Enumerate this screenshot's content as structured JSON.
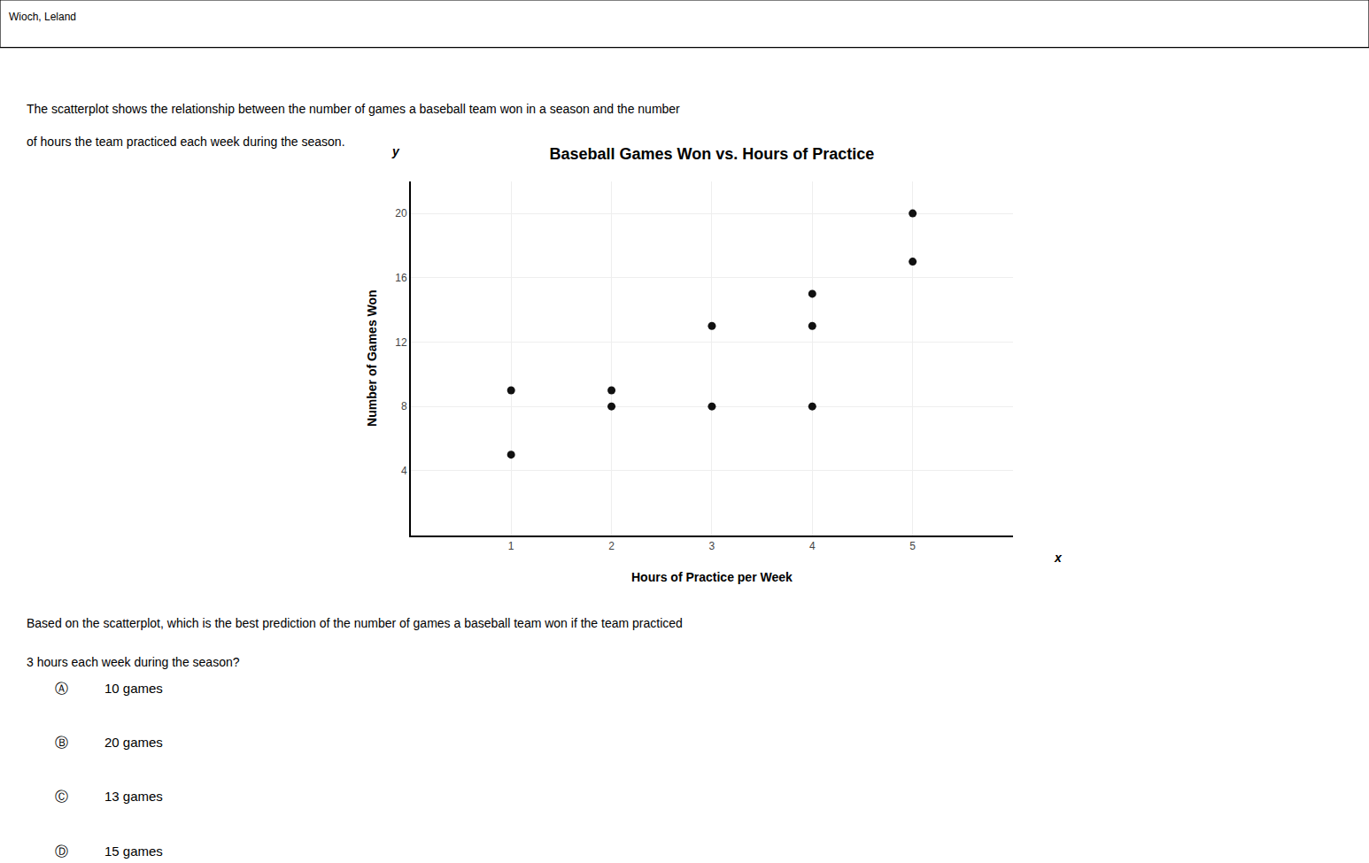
{
  "chart_data": {
    "type": "scatter",
    "title": "Baseball Games Won vs. Hours of Practice",
    "xlabel": "Hours of Practice per Week",
    "ylabel": "Number of Games Won",
    "x": [
      1,
      1,
      2,
      2,
      3,
      3,
      4,
      4,
      4,
      5,
      5
    ],
    "values": [
      9,
      5,
      9,
      8,
      8,
      13,
      8,
      15,
      13,
      17,
      20
    ],
    "color": "#111111",
    "xlim": [
      0,
      6
    ],
    "ylim": [
      0,
      22
    ],
    "xticks": [
      1,
      2,
      3,
      4,
      5
    ],
    "yticks": [
      4,
      8,
      12,
      16,
      20
    ],
    "grid": true,
    "annotations": [
      "Wioch, Leland",
      "The scatterplot shows the relationship between the number of games a baseball team won in a season and the number",
      "of hours the team practiced each week during the season.",
      "y",
      "x",
      "Based on the scatterplot, which is the best prediction of the number of games a baseball team won if the team practiced",
      "3 hours each week during the season?",
      "Ⓐ",
      "10 games",
      "Ⓑ",
      "20 games",
      "Ⓒ",
      "13 games",
      "Ⓓ",
      "15 games"
    ]
  }
}
